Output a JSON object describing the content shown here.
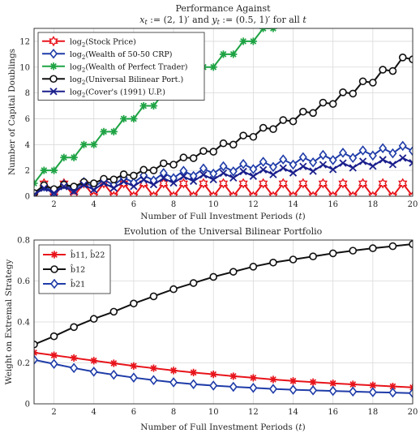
{
  "chart_data": [
    {
      "type": "line",
      "title": "Performance Against",
      "subtitle": "x_t := (2,1)' and y_t := (0.5,1)' for all t",
      "xlabel": "Number of Full Investment Periods (t)",
      "ylabel": "Number of Capital Doublings",
      "xlim": [
        1,
        20
      ],
      "ylim": [
        0,
        13
      ],
      "xticks": [
        2,
        4,
        6,
        8,
        10,
        12,
        14,
        16,
        18,
        20
      ],
      "yticks": [
        0,
        2,
        4,
        6,
        8,
        10,
        12
      ],
      "grid": true,
      "legend_position": "top-left",
      "series": [
        {
          "name": "log2(Stock Price)",
          "legend_prefix": "log",
          "legend_sub": "2",
          "legend_rest": "(Stock Price)",
          "color": "#e8141b",
          "marker": "hexagram",
          "x": [
            1,
            1.5,
            2,
            2.5,
            3,
            3.5,
            4,
            4.5,
            5,
            5.5,
            6,
            6.5,
            7,
            7.5,
            8,
            8.5,
            9,
            9.5,
            10,
            10.5,
            11,
            11.5,
            12,
            12.5,
            13,
            13.5,
            14,
            14.5,
            15,
            15.5,
            16,
            16.5,
            17,
            17.5,
            18,
            18.5,
            19,
            19.5,
            20
          ],
          "y": [
            0,
            1,
            0,
            1,
            0,
            1,
            0,
            1,
            0,
            1,
            0,
            1,
            0,
            1,
            0,
            1,
            0,
            1,
            0,
            1,
            0,
            1,
            0,
            1,
            0,
            1,
            0,
            1,
            0,
            1,
            0,
            1,
            0,
            1,
            0,
            1,
            0,
            1,
            0
          ]
        },
        {
          "name": "log2(Wealth of 50-50 CRP)",
          "legend_prefix": "log",
          "legend_sub": "2",
          "legend_rest": "(Wealth of 50-50 CRP)",
          "color": "#1f3ca8",
          "marker": "diamond",
          "x": [
            1,
            1.5,
            2,
            2.5,
            3,
            3.5,
            4,
            4.5,
            5,
            5.5,
            6,
            6.5,
            7,
            7.5,
            8,
            8.5,
            9,
            9.5,
            10,
            10.5,
            11,
            11.5,
            12,
            12.5,
            13,
            13.5,
            14,
            14.5,
            15,
            15.5,
            16,
            16.5,
            17,
            17.5,
            18,
            18.5,
            19,
            19.5,
            20
          ],
          "y": [
            0.17,
            0.75,
            0.35,
            0.92,
            0.52,
            1.1,
            0.7,
            1.27,
            0.87,
            1.45,
            1.05,
            1.62,
            1.22,
            1.8,
            1.4,
            1.97,
            1.57,
            2.15,
            1.75,
            2.32,
            1.92,
            2.5,
            2.1,
            2.67,
            2.27,
            2.85,
            2.45,
            3.02,
            2.62,
            3.2,
            2.8,
            3.37,
            2.97,
            3.55,
            3.15,
            3.72,
            3.32,
            3.9,
            3.5
          ]
        },
        {
          "name": "log2(Wealth of Perfect Trader)",
          "legend_prefix": "log",
          "legend_sub": "2",
          "legend_rest": "(Wealth of Perfect Trader)",
          "color": "#1ea344",
          "marker": "star",
          "x": [
            1,
            1.5,
            2,
            2.5,
            3,
            3.5,
            4,
            4.5,
            5,
            5.5,
            6,
            6.5,
            7,
            7.5,
            8,
            8.5,
            9,
            9.5,
            10,
            10.5,
            11,
            11.5,
            12,
            12.5,
            13
          ],
          "y": [
            1,
            2,
            2,
            3,
            3,
            4,
            4,
            5,
            5,
            6,
            6,
            7,
            7,
            8,
            8,
            9,
            9,
            10,
            10,
            11,
            11,
            12,
            12,
            13,
            13
          ]
        },
        {
          "name": "log2(Universal Bilinear Port.)",
          "legend_prefix": "log",
          "legend_sub": "2",
          "legend_rest": "(Universal Bilinear Port.)",
          "color": "#111111",
          "marker": "circle",
          "x": [
            1,
            1.5,
            2,
            2.5,
            3,
            3.5,
            4,
            4.5,
            5,
            5.5,
            6,
            6.5,
            7,
            7.5,
            8,
            8.5,
            9,
            9.5,
            10,
            10.5,
            11,
            11.5,
            12,
            12.5,
            13,
            13.5,
            14,
            14.5,
            15,
            15.5,
            16,
            16.5,
            17,
            17.5,
            18,
            18.5,
            19,
            19.5,
            20
          ],
          "y": [
            0.25,
            0.85,
            0.55,
            0.9,
            0.75,
            1.1,
            1.0,
            1.35,
            1.3,
            1.7,
            1.6,
            2.05,
            2.0,
            2.55,
            2.45,
            3.0,
            2.95,
            3.5,
            3.45,
            4.1,
            4.0,
            4.7,
            4.6,
            5.3,
            5.2,
            5.9,
            5.8,
            6.55,
            6.45,
            7.25,
            7.15,
            8.05,
            7.95,
            8.9,
            8.8,
            9.8,
            9.7,
            10.75,
            10.6
          ]
        },
        {
          "name": "log2(Cover's (1991) U.P.)",
          "legend_prefix": "log",
          "legend_sub": "2",
          "legend_rest": "(Cover's (1991) U.P.)",
          "color": "#1a1f8c",
          "marker": "x",
          "x": [
            1,
            1.5,
            2,
            2.5,
            3,
            3.5,
            4,
            4.5,
            5,
            5.5,
            6,
            6.5,
            7,
            7.5,
            8,
            8.5,
            9,
            9.5,
            10,
            10.5,
            11,
            11.5,
            12,
            12.5,
            13,
            13.5,
            14,
            14.5,
            15,
            15.5,
            16,
            16.5,
            17,
            17.5,
            18,
            18.5,
            19,
            19.5,
            20
          ],
          "y": [
            0.12,
            0.62,
            0.25,
            0.75,
            0.38,
            0.88,
            0.51,
            1.01,
            0.64,
            1.14,
            0.77,
            1.27,
            0.9,
            1.4,
            1.03,
            1.53,
            1.16,
            1.66,
            1.29,
            1.79,
            1.42,
            1.92,
            1.55,
            2.05,
            1.68,
            2.18,
            1.81,
            2.31,
            1.94,
            2.44,
            2.07,
            2.57,
            2.2,
            2.7,
            2.33,
            2.83,
            2.46,
            2.96,
            2.59
          ]
        }
      ]
    },
    {
      "type": "line",
      "title": "Evolution of the Universal Bilinear Portfolio",
      "xlabel": "Number of Full Investment Periods (t)",
      "ylabel": "Weight on Extremal Strategy",
      "xlim": [
        1,
        20
      ],
      "ylim": [
        0,
        0.8
      ],
      "xticks": [
        2,
        4,
        6,
        8,
        10,
        12,
        14,
        16,
        18,
        20
      ],
      "yticks": [
        0,
        0.2,
        0.4,
        0.6,
        0.8
      ],
      "ytick_labels": [
        "0",
        "0.2",
        "0.4",
        "0.6",
        "0.8"
      ],
      "grid": true,
      "legend_position": "top-left",
      "series": [
        {
          "name": "b̂11, b̂22",
          "legend_label": "b̂11, b̂22",
          "color": "#e8141b",
          "marker": "star",
          "x": [
            1,
            2,
            3,
            4,
            5,
            6,
            7,
            8,
            9,
            10,
            11,
            12,
            13,
            14,
            15,
            16,
            17,
            18,
            19,
            20
          ],
          "y": [
            0.25,
            0.237,
            0.224,
            0.211,
            0.198,
            0.185,
            0.174,
            0.163,
            0.153,
            0.144,
            0.135,
            0.127,
            0.119,
            0.112,
            0.106,
            0.1,
            0.095,
            0.09,
            0.085,
            0.08
          ]
        },
        {
          "name": "b̂12",
          "legend_label": "b̂12",
          "color": "#111111",
          "marker": "circle",
          "x": [
            1,
            2,
            3,
            4,
            5,
            6,
            7,
            8,
            9,
            10,
            11,
            12,
            13,
            14,
            15,
            16,
            17,
            18,
            19,
            20
          ],
          "y": [
            0.29,
            0.33,
            0.375,
            0.415,
            0.45,
            0.49,
            0.525,
            0.56,
            0.59,
            0.62,
            0.645,
            0.67,
            0.69,
            0.705,
            0.72,
            0.735,
            0.748,
            0.76,
            0.77,
            0.78
          ]
        },
        {
          "name": "b̂21",
          "legend_label": "b̂21",
          "color": "#1f3ca8",
          "marker": "diamond",
          "x": [
            1,
            2,
            3,
            4,
            5,
            6,
            7,
            8,
            9,
            10,
            11,
            12,
            13,
            14,
            15,
            16,
            17,
            18,
            19,
            20
          ],
          "y": [
            0.215,
            0.195,
            0.175,
            0.157,
            0.142,
            0.128,
            0.116,
            0.105,
            0.096,
            0.089,
            0.083,
            0.078,
            0.073,
            0.069,
            0.066,
            0.063,
            0.06,
            0.057,
            0.055,
            0.052
          ]
        }
      ]
    }
  ]
}
